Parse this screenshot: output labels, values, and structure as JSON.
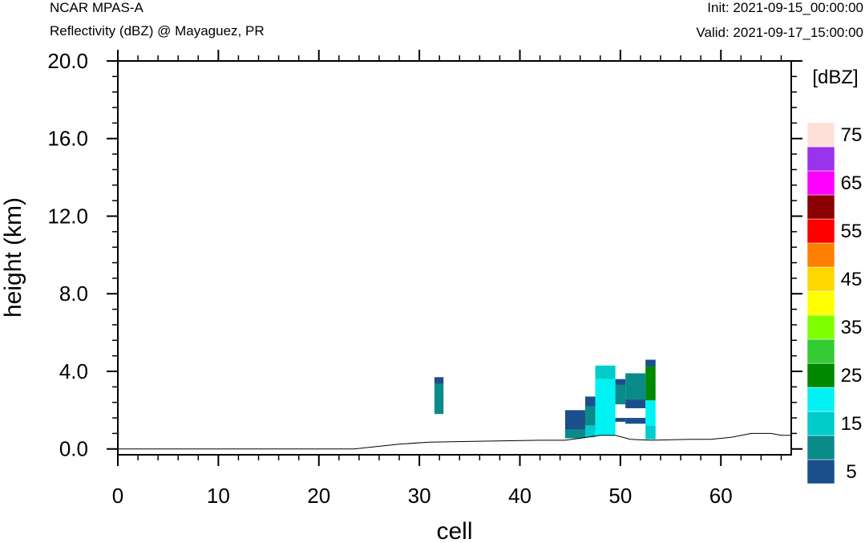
{
  "header": {
    "left_title": "NCAR MPAS-A",
    "left_subtitle": "Reflectivity (dBZ) @ Mayaguez, PR",
    "right_init": "Init: 2021-09-15_00:00:00",
    "right_valid": "Valid: 2021-09-17_15:00:00"
  },
  "chart_data": {
    "type": "heatmap",
    "xlabel": "cell",
    "ylabel": "height (km)",
    "xlim": [
      0,
      67
    ],
    "ylim": [
      -0.3,
      20.0
    ],
    "x_ticks": [
      0,
      10,
      20,
      30,
      40,
      50,
      60
    ],
    "x_tick_labels": [
      "0",
      "10",
      "20",
      "30",
      "40",
      "50",
      "60"
    ],
    "y_ticks": [
      0,
      4,
      8,
      12,
      16,
      20
    ],
    "y_tick_labels": [
      "0.0",
      "4.0",
      "8.0",
      "12.0",
      "16.0",
      "20.0"
    ],
    "colorbar": {
      "units": "[dBZ]",
      "levels": [
        5,
        10,
        15,
        20,
        25,
        30,
        35,
        40,
        45,
        50,
        55,
        60,
        65,
        70,
        75
      ],
      "labels": [
        "5",
        "15",
        "25",
        "35",
        "45",
        "55",
        "65",
        "75"
      ],
      "colors": [
        "#1a4f8c",
        "#0b8a8a",
        "#00cccc",
        "#00f2f2",
        "#008800",
        "#33cc33",
        "#80ff00",
        "#ffff00",
        "#ffd700",
        "#ff8000",
        "#ff0000",
        "#8b0000",
        "#ff00ff",
        "#9933ee",
        "#ffe0d8"
      ]
    },
    "terrain": [
      [
        0,
        0
      ],
      [
        23.5,
        0
      ],
      [
        28,
        0.25
      ],
      [
        31,
        0.35
      ],
      [
        36,
        0.4
      ],
      [
        42,
        0.45
      ],
      [
        44.5,
        0.45
      ],
      [
        46,
        0.55
      ],
      [
        48,
        0.7
      ],
      [
        49.5,
        0.7
      ],
      [
        51,
        0.5
      ],
      [
        53,
        0.45
      ],
      [
        57,
        0.5
      ],
      [
        59,
        0.5
      ],
      [
        61,
        0.6
      ],
      [
        63,
        0.8
      ],
      [
        65,
        0.8
      ],
      [
        66,
        0.7
      ],
      [
        67,
        0.7
      ]
    ],
    "cells": [
      {
        "x0": 31.5,
        "x1": 32.4,
        "y0": 3.35,
        "y1": 3.7,
        "dbz": 5
      },
      {
        "x0": 31.5,
        "x1": 32.4,
        "y0": 1.8,
        "y1": 3.35,
        "dbz": 10
      },
      {
        "x0": 44.5,
        "x1": 46.5,
        "y0": 1.0,
        "y1": 2.0,
        "dbz": 5
      },
      {
        "x0": 44.5,
        "x1": 46.5,
        "y0": 0.55,
        "y1": 1.0,
        "dbz": 10
      },
      {
        "x0": 46.5,
        "x1": 47.5,
        "y0": 2.2,
        "y1": 2.7,
        "dbz": 5
      },
      {
        "x0": 46.5,
        "x1": 47.5,
        "y0": 1.2,
        "y1": 2.2,
        "dbz": 10
      },
      {
        "x0": 46.5,
        "x1": 47.5,
        "y0": 0.6,
        "y1": 1.2,
        "dbz": 15
      },
      {
        "x0": 47.5,
        "x1": 49.5,
        "y0": 3.6,
        "y1": 4.3,
        "dbz": 15
      },
      {
        "x0": 47.5,
        "x1": 49.5,
        "y0": 0.7,
        "y1": 3.6,
        "dbz": 20
      },
      {
        "x0": 49.5,
        "x1": 50.5,
        "y0": 3.3,
        "y1": 3.6,
        "dbz": 5
      },
      {
        "x0": 49.5,
        "x1": 50.5,
        "y0": 2.3,
        "y1": 3.3,
        "dbz": 10
      },
      {
        "x0": 49.5,
        "x1": 50.5,
        "y0": 1.4,
        "y1": 1.6,
        "dbz": 5
      },
      {
        "x0": 50.5,
        "x1": 52.5,
        "y0": 2.55,
        "y1": 3.9,
        "dbz": 10
      },
      {
        "x0": 50.5,
        "x1": 52.5,
        "y0": 2.1,
        "y1": 2.55,
        "dbz": 5
      },
      {
        "x0": 50.5,
        "x1": 52.5,
        "y0": 1.3,
        "y1": 1.6,
        "dbz": 5
      },
      {
        "x0": 52.5,
        "x1": 53.5,
        "y0": 4.25,
        "y1": 4.6,
        "dbz": 5
      },
      {
        "x0": 52.5,
        "x1": 53.5,
        "y0": 2.5,
        "y1": 4.25,
        "dbz": 25
      },
      {
        "x0": 52.5,
        "x1": 53.5,
        "y0": 1.2,
        "y1": 2.5,
        "dbz": 20
      },
      {
        "x0": 52.5,
        "x1": 53.5,
        "y0": 0.5,
        "y1": 1.2,
        "dbz": 15
      }
    ]
  }
}
